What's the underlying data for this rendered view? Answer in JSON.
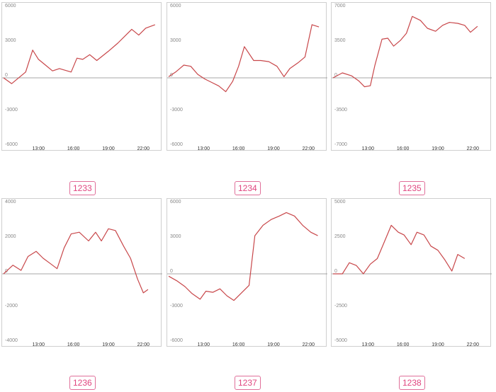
{
  "chart_data": [
    {
      "type": "line",
      "label": "1233",
      "x_ticks": [
        "13:00",
        "16:00",
        "19:00",
        "22:00"
      ],
      "y_ticks": [
        6000,
        3000,
        0,
        -3000,
        -6000
      ],
      "ylim": [
        -6000,
        6000
      ],
      "xlim": [
        10.0,
        23.5
      ],
      "x": [
        10.0,
        10.7,
        11.9,
        12.5,
        13.0,
        13.6,
        14.2,
        14.8,
        15.8,
        16.3,
        16.8,
        17.4,
        18.0,
        19.0,
        19.8,
        20.5,
        21.0,
        21.6,
        22.2,
        23.0
      ],
      "values": [
        0,
        -500,
        500,
        2400,
        1600,
        1100,
        600,
        800,
        500,
        1700,
        1600,
        2000,
        1500,
        2300,
        3000,
        3700,
        4200,
        3700,
        4300,
        4600
      ],
      "color": "#c8474a"
    },
    {
      "type": "line",
      "label": "1234",
      "x_ticks": [
        "13:00",
        "16:00",
        "19:00",
        "22:00"
      ],
      "y_ticks": [
        6000,
        3000,
        0,
        -3000,
        -6000
      ],
      "ylim": [
        -6000,
        6000
      ],
      "xlim": [
        10.0,
        23.5
      ],
      "x": [
        10.0,
        10.6,
        11.3,
        11.9,
        12.5,
        13.1,
        13.7,
        14.3,
        14.9,
        15.5,
        16.0,
        16.5,
        17.3,
        17.9,
        18.6,
        19.3,
        19.9,
        20.4,
        21.1,
        21.7,
        22.3,
        22.9
      ],
      "values": [
        100,
        500,
        1100,
        1000,
        300,
        -100,
        -400,
        -700,
        -1200,
        -300,
        1000,
        2700,
        1500,
        1500,
        1400,
        1000,
        100,
        800,
        1300,
        1800,
        4600,
        4400
      ],
      "color": "#c8474a"
    },
    {
      "type": "line",
      "label": "1235",
      "x_ticks": [
        "13:00",
        "16:00",
        "19:00",
        "22:00"
      ],
      "y_ticks": [
        7000,
        3500,
        0,
        -3500,
        -7000
      ],
      "ylim": [
        -7000,
        7000
      ],
      "xlim": [
        10.0,
        23.5
      ],
      "x": [
        10.0,
        10.8,
        11.6,
        12.2,
        12.7,
        13.2,
        13.6,
        14.2,
        14.7,
        15.2,
        15.8,
        16.3,
        16.8,
        17.5,
        18.1,
        18.8,
        19.4,
        20.0,
        20.7,
        21.3,
        21.8,
        22.4
      ],
      "values": [
        0,
        500,
        200,
        -300,
        -900,
        -800,
        1300,
        3900,
        4000,
        3200,
        3800,
        4500,
        6200,
        5800,
        5000,
        4700,
        5300,
        5600,
        5500,
        5300,
        4600,
        5200
      ],
      "color": "#c8474a"
    },
    {
      "type": "line",
      "label": "1236",
      "x_ticks": [
        "13:00",
        "16:00",
        "19:00",
        "22:00"
      ],
      "y_ticks": [
        4000,
        2000,
        0,
        -2000,
        -4000
      ],
      "ylim": [
        -4000,
        4000
      ],
      "xlim": [
        10.0,
        23.5
      ],
      "x": [
        10.0,
        10.8,
        11.5,
        12.1,
        12.8,
        13.4,
        14.0,
        14.6,
        15.2,
        15.8,
        16.5,
        17.3,
        17.9,
        18.4,
        19.0,
        19.6,
        20.3,
        20.9,
        21.5,
        22.0,
        22.4
      ],
      "values": [
        0,
        500,
        200,
        1000,
        1300,
        900,
        600,
        300,
        1500,
        2300,
        2400,
        1900,
        2400,
        1900,
        2600,
        2500,
        1600,
        900,
        -300,
        -1100,
        -900
      ],
      "color": "#c8474a"
    },
    {
      "type": "line",
      "label": "1237",
      "x_ticks": [
        "13:00",
        "16:00",
        "19:00",
        "22:00"
      ],
      "y_ticks": [
        6000,
        3000,
        0,
        -3000,
        -6000
      ],
      "ylim": [
        -6000,
        6000
      ],
      "xlim": [
        10.0,
        23.5
      ],
      "x": [
        10.0,
        10.7,
        11.4,
        12.0,
        12.7,
        13.2,
        13.8,
        14.4,
        15.0,
        15.6,
        16.1,
        16.9,
        17.4,
        18.1,
        18.8,
        19.5,
        20.1,
        20.8,
        21.5,
        22.2,
        22.8
      ],
      "values": [
        -200,
        -600,
        -1100,
        -1700,
        -2200,
        -1500,
        -1600,
        -1300,
        -1900,
        -2300,
        -1800,
        -1000,
        3300,
        4200,
        4700,
        5000,
        5300,
        5000,
        4200,
        3600,
        3300
      ],
      "color": "#c8474a"
    },
    {
      "type": "line",
      "label": "1238",
      "x_ticks": [
        "13:00",
        "16:00",
        "19:00",
        "22:00"
      ],
      "y_ticks": [
        5000,
        2500,
        0,
        -2500,
        -5000
      ],
      "ylim": [
        -5000,
        5000
      ],
      "xlim": [
        10.0,
        23.5
      ],
      "x": [
        10.0,
        10.8,
        11.4,
        12.0,
        12.6,
        13.2,
        13.8,
        14.4,
        15.0,
        15.6,
        16.1,
        16.7,
        17.2,
        17.8,
        18.4,
        19.0,
        19.6,
        20.2,
        20.7,
        21.3
      ],
      "values": [
        0,
        0,
        800,
        600,
        0,
        700,
        1100,
        2300,
        3500,
        3000,
        2800,
        2100,
        3000,
        2800,
        2000,
        1700,
        1000,
        200,
        1400,
        1100
      ],
      "color": "#c8474a"
    }
  ]
}
